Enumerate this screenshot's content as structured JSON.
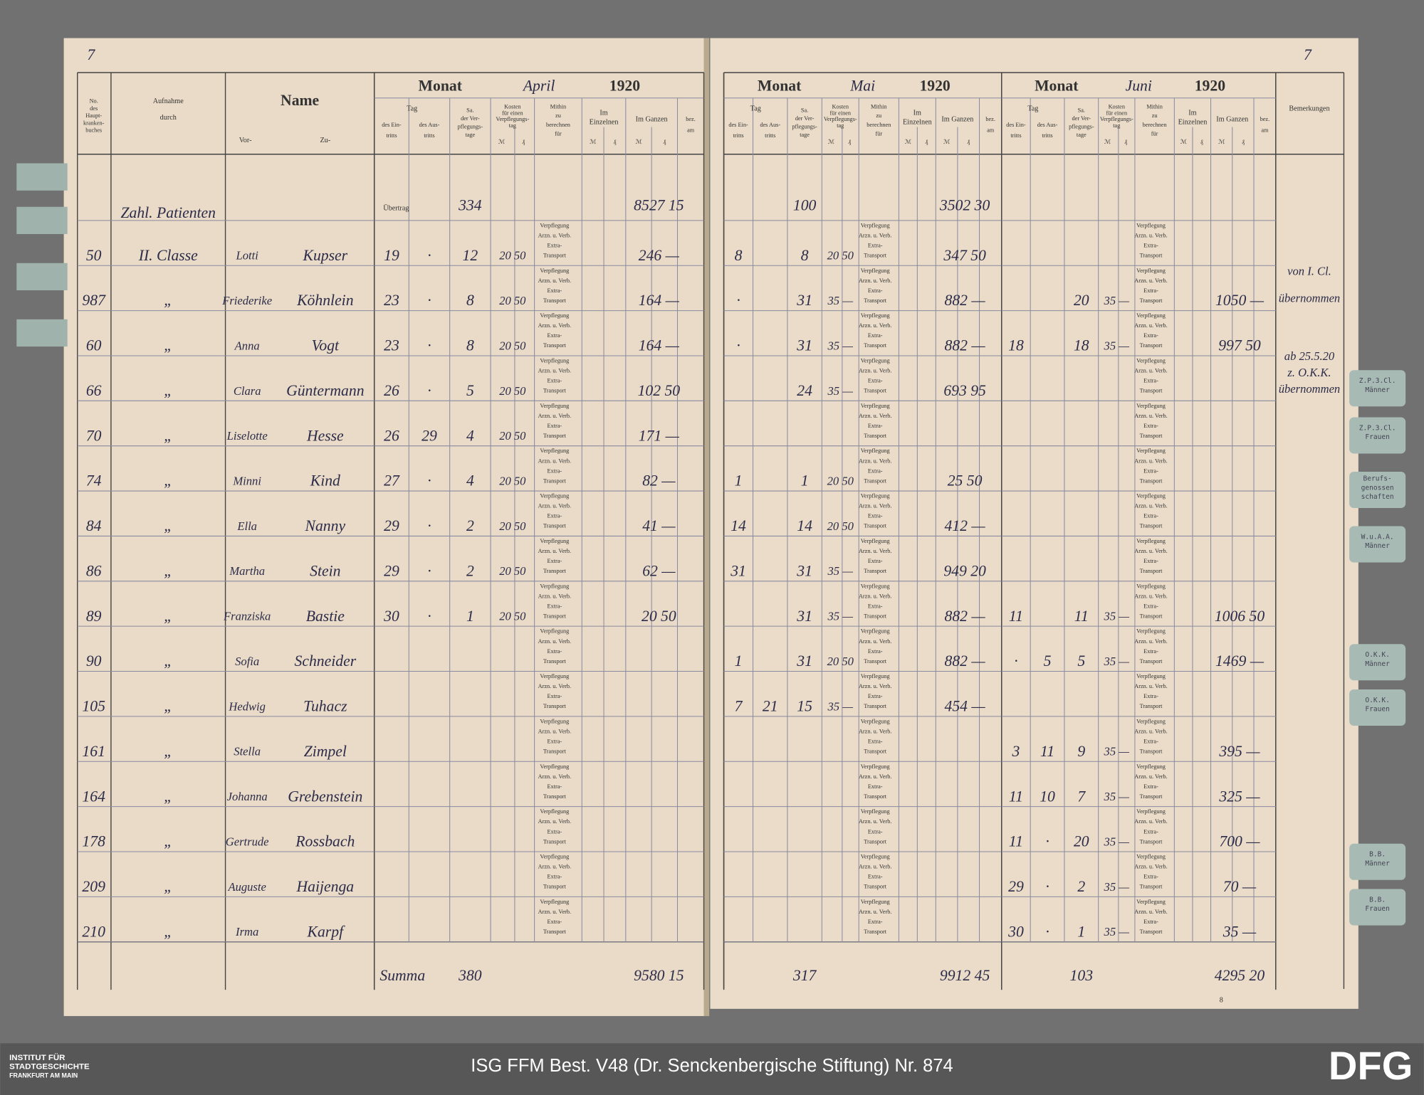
{
  "pages": {
    "left_number": "7",
    "right_number": "7",
    "sheet_number": "8"
  },
  "header": {
    "nr": [
      "No.",
      "des",
      "Haupt-",
      "kranken-",
      "buches"
    ],
    "aufnahme": [
      "Aufnahme",
      "durch"
    ],
    "name": "Name",
    "vor": "Vor-",
    "zu": "Zu-",
    "tag": "Tag",
    "eintritt": [
      "des Ein-",
      "tritts"
    ],
    "austritt": [
      "des Aus-",
      "tritts"
    ],
    "sa": [
      "Sa.",
      "der Ver-",
      "pflegungs-",
      "tage"
    ],
    "kosten": [
      "Kosten",
      "für einen",
      "Verpflegungs-",
      "tag"
    ],
    "mithin": [
      "Mithin",
      "zu",
      "berechnen",
      "für"
    ],
    "einzeln": [
      "Im",
      "Einzelnen"
    ],
    "ganzen": "Im Ganzen",
    "bez": [
      "bez.",
      "am"
    ],
    "mark": "ℳ",
    "pf": "₰",
    "monat": "Monat",
    "bemerkungen": "Bemerkungen"
  },
  "months": [
    {
      "name": "April",
      "year": "1920"
    },
    {
      "name": "Mai",
      "year": "1920"
    },
    {
      "name": "Juni",
      "year": "1920"
    }
  ],
  "sublabels": [
    "Verpflegung",
    "Arzn. u. Verb.",
    "Extra-",
    "Transport"
  ],
  "uebertrag": {
    "label": "Übertrag",
    "note": "Zahl. Patienten",
    "april_days": "334",
    "april_total": "8527 15",
    "mai_days": "100",
    "mai_total": "3502 30"
  },
  "rows": [
    {
      "nr": "50",
      "durch": "II. Classe",
      "first": "Lotti",
      "last": "Kupser",
      "april": [
        "19",
        "·",
        "12",
        "20 50",
        "246 —"
      ],
      "mai": [
        "8",
        null,
        "8",
        "20 50",
        "347 50"
      ],
      "juni": [
        null,
        null,
        null,
        null,
        null
      ]
    },
    {
      "nr": "987",
      "durch": "„",
      "first": "Friederike",
      "last": "Köhnlein",
      "april": [
        "23",
        "·",
        "8",
        "20 50",
        "164 —"
      ],
      "mai": [
        "·",
        null,
        "31",
        "35 —",
        "882 —"
      ],
      "juni": [
        null,
        null,
        "20",
        "35 —",
        "1050 —"
      ]
    },
    {
      "nr": "60",
      "durch": "„",
      "first": "Anna",
      "last": "Vogt",
      "april": [
        "23",
        "·",
        "8",
        "20 50",
        "164 —"
      ],
      "mai": [
        "·",
        null,
        "31",
        "35 —",
        "882 —"
      ],
      "juni": [
        "18",
        null,
        "18",
        "35 —",
        "997 50"
      ]
    },
    {
      "nr": "66",
      "durch": "„",
      "first": "Clara",
      "last": "Güntermann",
      "april": [
        "26",
        "·",
        "5",
        "20 50",
        "102 50"
      ],
      "mai": [
        null,
        null,
        "24",
        "35 —",
        "693 95"
      ],
      "juni": [
        null,
        null,
        null,
        null,
        null
      ]
    },
    {
      "nr": "70",
      "durch": "„",
      "first": "Liselotte",
      "last": "Hesse",
      "april": [
        "26",
        "29",
        "4",
        "20 50",
        "171 —"
      ],
      "mai": [
        null,
        null,
        null,
        null,
        null
      ],
      "juni": [
        null,
        null,
        null,
        null,
        null
      ]
    },
    {
      "nr": "74",
      "durch": "„",
      "first": "Minni",
      "last": "Kind",
      "april": [
        "27",
        "·",
        "4",
        "20 50",
        "82 —"
      ],
      "mai": [
        "1",
        null,
        "1",
        "20 50",
        "25 50"
      ],
      "juni": [
        null,
        null,
        null,
        null,
        null
      ]
    },
    {
      "nr": "84",
      "durch": "„",
      "first": "Ella",
      "last": "Nanny",
      "april": [
        "29",
        "·",
        "2",
        "20 50",
        "41 —"
      ],
      "mai": [
        "14",
        null,
        "14",
        "20 50",
        "412 —"
      ],
      "juni": [
        null,
        null,
        null,
        null,
        null
      ]
    },
    {
      "nr": "86",
      "durch": "„",
      "first": "Martha",
      "last": "Stein",
      "april": [
        "29",
        "·",
        "2",
        "20 50",
        "62 —"
      ],
      "mai": [
        "31",
        null,
        "31",
        "35 —",
        "949 20"
      ],
      "juni": [
        null,
        null,
        null,
        null,
        null
      ]
    },
    {
      "nr": "89",
      "durch": "„",
      "first": "Franziska",
      "last": "Bastie",
      "april": [
        "30",
        "·",
        "1",
        "20 50",
        "20 50"
      ],
      "mai": [
        null,
        null,
        "31",
        "35 —",
        "882 —"
      ],
      "juni": [
        "11",
        null,
        "11",
        "35 —",
        "1006 50"
      ]
    },
    {
      "nr": "90",
      "durch": "„",
      "first": "Sofia",
      "last": "Schneider",
      "april": [
        null,
        null,
        null,
        null,
        null
      ],
      "mai": [
        "1",
        null,
        "31",
        "20 50",
        "882 —"
      ],
      "juni": [
        "·",
        "5",
        "5",
        "35 —",
        "1469 —"
      ]
    },
    {
      "nr": "105",
      "durch": "„",
      "first": "Hedwig",
      "last": "Tuhacz",
      "april": [
        null,
        null,
        null,
        null,
        null
      ],
      "mai": [
        "7",
        "21",
        "15",
        "35 —",
        "454 —"
      ],
      "juni": [
        null,
        null,
        null,
        null,
        null
      ]
    },
    {
      "nr": "161",
      "durch": "„",
      "first": "Stella",
      "last": "Zimpel",
      "april": [
        null,
        null,
        null,
        null,
        null
      ],
      "mai": [
        null,
        null,
        null,
        null,
        null
      ],
      "juni": [
        "3",
        "11",
        "9",
        "35 —",
        "395 —"
      ]
    },
    {
      "nr": "164",
      "durch": "„",
      "first": "Johanna",
      "last": "Grebenstein",
      "april": [
        null,
        null,
        null,
        null,
        null
      ],
      "mai": [
        null,
        null,
        null,
        null,
        null
      ],
      "juni": [
        "11",
        "10",
        "7",
        "35 —",
        "325 —"
      ]
    },
    {
      "nr": "178",
      "durch": "„",
      "first": "Gertrude",
      "last": "Rossbach",
      "april": [
        null,
        null,
        null,
        null,
        null
      ],
      "mai": [
        null,
        null,
        null,
        null,
        null
      ],
      "juni": [
        "11",
        "·",
        "20",
        "35 —",
        "700 —"
      ]
    },
    {
      "nr": "209",
      "durch": "„",
      "first": "Auguste",
      "last": "Haijenga",
      "april": [
        null,
        null,
        null,
        null,
        null
      ],
      "mai": [
        null,
        null,
        null,
        null,
        null
      ],
      "juni": [
        "29",
        "·",
        "2",
        "35 —",
        "70 —"
      ]
    },
    {
      "nr": "210",
      "durch": "„",
      "first": "Irma",
      "last": "Karpf",
      "april": [
        null,
        null,
        null,
        null,
        null
      ],
      "mai": [
        null,
        null,
        null,
        null,
        null
      ],
      "juni": [
        "30",
        "·",
        "1",
        "35 —",
        "35 —"
      ]
    }
  ],
  "summa": {
    "label": "Summa",
    "april_days": "380",
    "april_total": "9580 15",
    "mai_days": "317",
    "mai_total": "9912 45",
    "juni_days": "103",
    "juni_total": "4295 20"
  },
  "remarks": [
    "von I. Cl.",
    "übernommen",
    "ab 25.5.20",
    "z. O.K.K.",
    "übernommen"
  ],
  "tabs": [
    [
      "Z.P.3.Cl.",
      "Männer"
    ],
    [
      "Z.P.3.Cl.",
      "Frauen"
    ],
    [
      "Berufs-",
      "genossen",
      "schaften"
    ],
    [
      "W.u.A.A.",
      "Männer"
    ],
    [
      "O.K.K.",
      "Männer"
    ],
    [
      "O.K.K.",
      "Frauen"
    ],
    [
      "B.B.",
      "Männer"
    ],
    [
      "B.B.",
      "Frauen"
    ]
  ],
  "footer": {
    "institute": [
      "INSTITUT FÜR",
      "STADTGESCHICHTE",
      "FRANKFURT AM MAIN"
    ],
    "caption": "ISG FFM Best. V48 (Dr. Senckenbergische Stiftung) Nr. 874",
    "logo": "DFG"
  }
}
